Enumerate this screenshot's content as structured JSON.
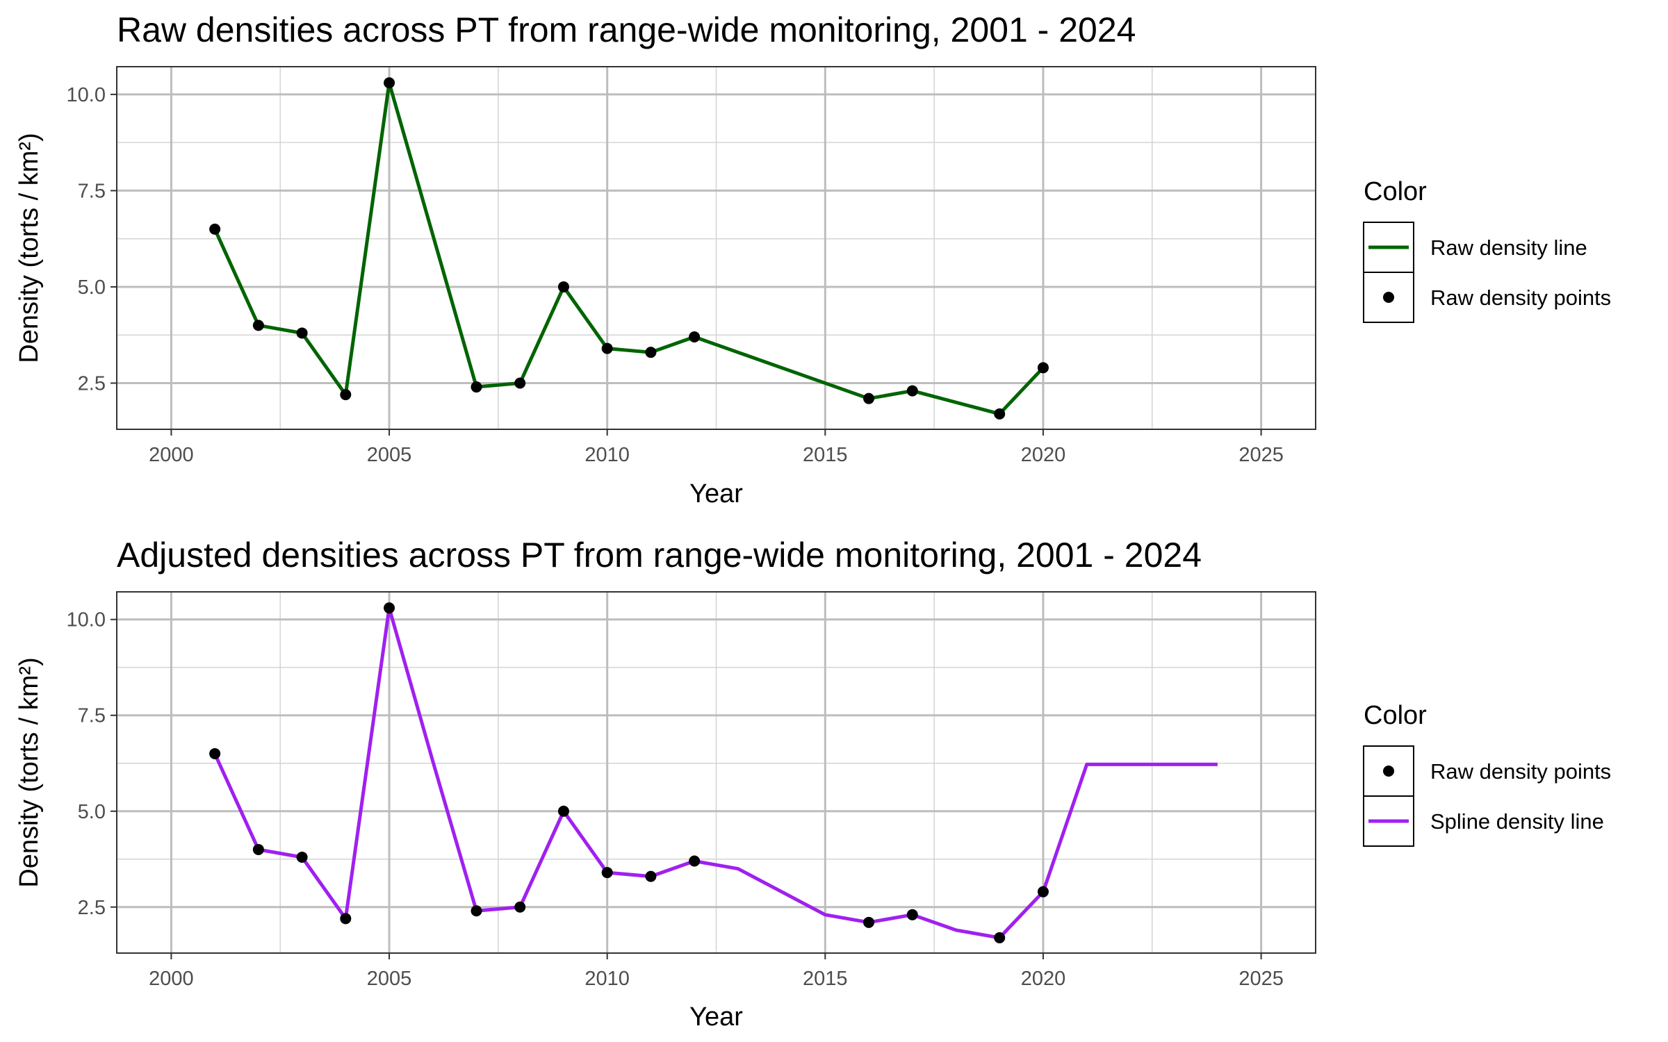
{
  "chart_data": [
    {
      "type": "line",
      "title": "Raw densities across PT from range-wide monitoring, 2001 - 2024",
      "xlabel": "Year",
      "ylabel": "Density (torts / km²)",
      "xlim": [
        1998.75,
        2026.25
      ],
      "ylim": [
        1.3,
        10.72
      ],
      "x_ticks": [
        2000,
        2005,
        2010,
        2015,
        2020,
        2025
      ],
      "x_tick_labels": [
        "2000",
        "2005",
        "2010",
        "2015",
        "2020",
        "2025"
      ],
      "y_ticks": [
        2.5,
        5.0,
        7.5,
        10.0
      ],
      "y_tick_labels": [
        "2.5",
        "5.0",
        "7.5",
        "10.0"
      ],
      "grid": true,
      "legend": {
        "title": "Color",
        "position": "right",
        "entries": [
          {
            "label": "Raw density line",
            "kind": "line",
            "color": "#006400"
          },
          {
            "label": "Raw density points",
            "kind": "point",
            "color": "#000000"
          }
        ]
      },
      "series": [
        {
          "name": "Raw density line",
          "kind": "line",
          "color": "#006400",
          "x": [
            2001,
            2002,
            2003,
            2004,
            2005,
            2007,
            2008,
            2009,
            2010,
            2011,
            2012,
            2016,
            2017,
            2019,
            2020
          ],
          "y": [
            6.5,
            4.0,
            3.8,
            2.2,
            10.3,
            2.4,
            2.5,
            5.0,
            3.4,
            3.3,
            3.7,
            2.1,
            2.3,
            1.7,
            2.9
          ]
        },
        {
          "name": "Raw density points",
          "kind": "point",
          "color": "#000000",
          "x": [
            2001,
            2002,
            2003,
            2004,
            2005,
            2007,
            2008,
            2009,
            2010,
            2011,
            2012,
            2016,
            2017,
            2019,
            2020
          ],
          "y": [
            6.5,
            4.0,
            3.8,
            2.2,
            10.3,
            2.4,
            2.5,
            5.0,
            3.4,
            3.3,
            3.7,
            2.1,
            2.3,
            1.7,
            2.9
          ]
        }
      ]
    },
    {
      "type": "line",
      "title": "Adjusted densities across PT from range-wide monitoring, 2001 - 2024",
      "xlabel": "Year",
      "ylabel": "Density (torts / km²)",
      "xlim": [
        1998.75,
        2026.25
      ],
      "ylim": [
        1.3,
        10.72
      ],
      "x_ticks": [
        2000,
        2005,
        2010,
        2015,
        2020,
        2025
      ],
      "x_tick_labels": [
        "2000",
        "2005",
        "2010",
        "2015",
        "2020",
        "2025"
      ],
      "y_ticks": [
        2.5,
        5.0,
        7.5,
        10.0
      ],
      "y_tick_labels": [
        "2.5",
        "5.0",
        "7.5",
        "10.0"
      ],
      "grid": true,
      "legend": {
        "title": "Color",
        "position": "right",
        "entries": [
          {
            "label": "Raw density points",
            "kind": "point",
            "color": "#000000"
          },
          {
            "label": "Spline density line",
            "kind": "line",
            "color": "#a020f0"
          }
        ]
      },
      "series": [
        {
          "name": "Spline density line",
          "kind": "line",
          "color": "#a020f0",
          "x": [
            2001,
            2002,
            2003,
            2004,
            2005,
            2006,
            2007,
            2008,
            2009,
            2010,
            2011,
            2012,
            2013,
            2014,
            2015,
            2016,
            2017,
            2018,
            2019,
            2020,
            2021,
            2022,
            2023,
            2024
          ],
          "y": [
            6.5,
            4.0,
            3.8,
            2.2,
            10.3,
            6.3,
            2.4,
            2.5,
            5.0,
            3.4,
            3.3,
            3.7,
            3.5,
            2.9,
            2.3,
            2.1,
            2.3,
            1.9,
            1.7,
            2.9,
            6.22,
            6.22,
            6.22,
            6.22
          ]
        },
        {
          "name": "Raw density points",
          "kind": "point",
          "color": "#000000",
          "x": [
            2001,
            2002,
            2003,
            2004,
            2005,
            2007,
            2008,
            2009,
            2010,
            2011,
            2012,
            2016,
            2017,
            2019,
            2020
          ],
          "y": [
            6.5,
            4.0,
            3.8,
            2.2,
            10.3,
            2.4,
            2.5,
            5.0,
            3.4,
            3.3,
            3.7,
            2.1,
            2.3,
            1.7,
            2.9
          ]
        }
      ]
    }
  ]
}
